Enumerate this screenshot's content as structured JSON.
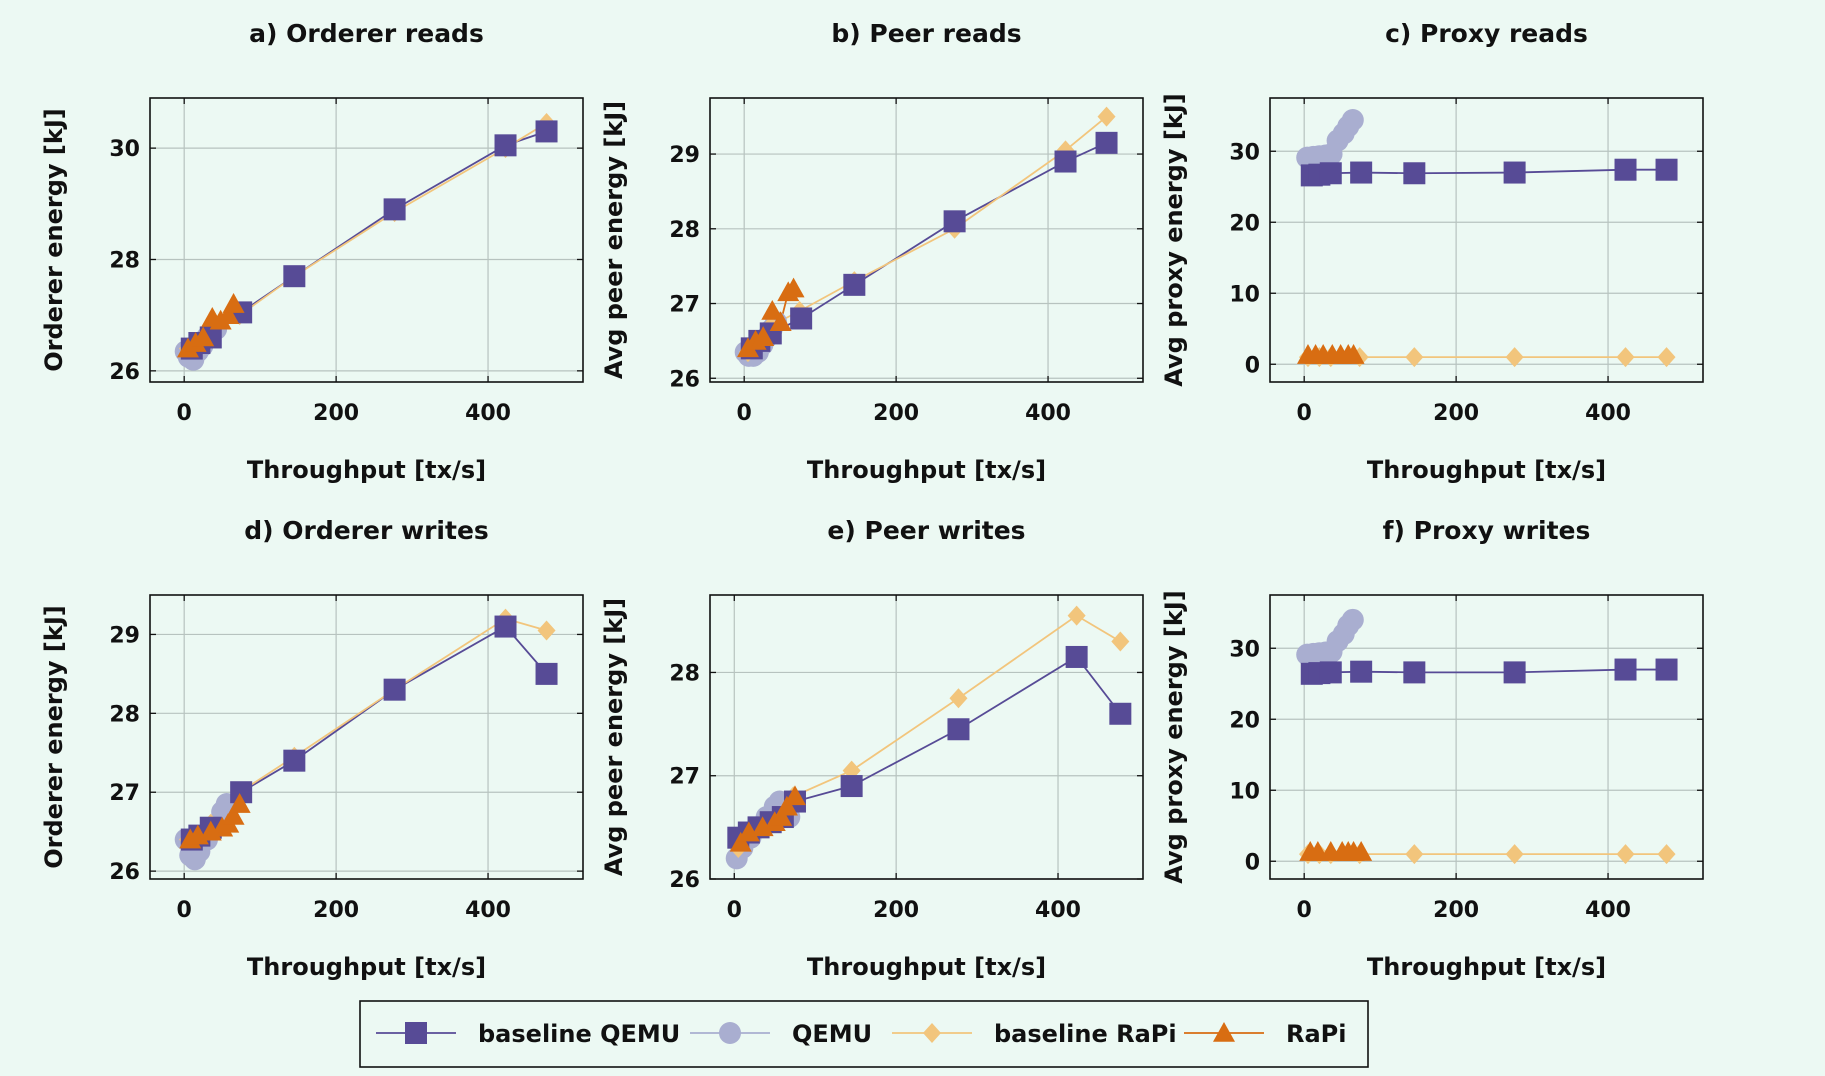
{
  "colors": {
    "baseline QEMU": "#574b96",
    "QEMU": "#a9aed0",
    "baseline RaPi": "#f2c57c",
    "RaPi": "#d86d12"
  },
  "legend": {
    "placement": "bottom-center",
    "entries": [
      {
        "label": "baseline QEMU",
        "marker": "square"
      },
      {
        "label": "QEMU",
        "marker": "circle"
      },
      {
        "label": "baseline RaPi",
        "marker": "diamond"
      },
      {
        "label": "RaPi",
        "marker": "triangle"
      }
    ]
  },
  "chart_data": [
    {
      "type": "line",
      "title": "a) Orderer reads",
      "xlabel": "Throughput [tx/s]",
      "ylabel": "Orderer energy [kJ]",
      "xlim": [
        -45,
        525
      ],
      "ylim": [
        25.8,
        30.9
      ],
      "xticks": [
        0,
        200,
        400
      ],
      "yticks": [
        26,
        28,
        30
      ],
      "grid": true,
      "series": [
        {
          "name": "baseline QEMU",
          "marker": "square",
          "x": [
            10,
            20,
            35,
            75,
            145,
            277,
            423,
            477
          ],
          "y": [
            26.4,
            26.5,
            26.6,
            27.05,
            27.7,
            28.9,
            30.05,
            30.3
          ]
        },
        {
          "name": "QEMU",
          "marker": "circle",
          "x": [
            2,
            6,
            12,
            18,
            24,
            30,
            36,
            42
          ],
          "y": [
            26.35,
            26.25,
            26.2,
            26.35,
            26.45,
            26.6,
            26.7,
            26.75
          ]
        },
        {
          "name": "baseline RaPi",
          "marker": "diamond",
          "x": [
            5,
            20,
            35,
            73,
            145,
            277,
            423,
            477
          ],
          "y": [
            26.4,
            26.5,
            26.7,
            27.0,
            27.7,
            28.85,
            30.0,
            30.45
          ]
        },
        {
          "name": "RaPi",
          "marker": "triangle",
          "x": [
            5,
            15,
            25,
            37,
            48,
            58,
            65
          ],
          "y": [
            26.4,
            26.5,
            26.6,
            26.95,
            26.9,
            27.0,
            27.2
          ]
        }
      ]
    },
    {
      "type": "line",
      "title": "b) Peer reads",
      "xlabel": "Throughput [tx/s]",
      "ylabel": "Avg peer energy [kJ]",
      "xlim": [
        -45,
        525
      ],
      "ylim": [
        25.95,
        29.75
      ],
      "xticks": [
        0,
        200,
        400
      ],
      "yticks": [
        26,
        27,
        28,
        29
      ],
      "grid": true,
      "series": [
        {
          "name": "baseline QEMU",
          "marker": "square",
          "x": [
            10,
            20,
            35,
            75,
            145,
            277,
            423,
            477
          ],
          "y": [
            26.4,
            26.5,
            26.6,
            26.8,
            27.25,
            28.1,
            28.9,
            29.15
          ]
        },
        {
          "name": "QEMU",
          "marker": "circle",
          "x": [
            2,
            6,
            12,
            18,
            24,
            30,
            36,
            42
          ],
          "y": [
            26.35,
            26.3,
            26.3,
            26.35,
            26.45,
            26.55,
            26.65,
            26.75
          ]
        },
        {
          "name": "baseline RaPi",
          "marker": "diamond",
          "x": [
            5,
            20,
            35,
            73,
            145,
            277,
            423,
            477
          ],
          "y": [
            26.35,
            26.5,
            26.7,
            26.9,
            27.3,
            28.0,
            29.05,
            29.5
          ]
        },
        {
          "name": "RaPi",
          "marker": "triangle",
          "x": [
            5,
            15,
            25,
            37,
            48,
            58,
            65
          ],
          "y": [
            26.4,
            26.5,
            26.55,
            26.9,
            26.75,
            27.15,
            27.2
          ]
        }
      ]
    },
    {
      "type": "line",
      "title": "c) Proxy reads",
      "xlabel": "Throughput [tx/s]",
      "ylabel": "Avg proxy energy [kJ]",
      "xlim": [
        -45,
        525
      ],
      "ylim": [
        -2.5,
        37.5
      ],
      "xticks": [
        0,
        200,
        400
      ],
      "yticks": [
        0,
        10,
        20,
        30
      ],
      "grid": true,
      "series": [
        {
          "name": "baseline QEMU",
          "marker": "square",
          "x": [
            10,
            20,
            35,
            75,
            145,
            277,
            423,
            477
          ],
          "y": [
            26.6,
            26.7,
            26.9,
            27.0,
            26.9,
            27.0,
            27.4,
            27.4
          ]
        },
        {
          "name": "QEMU",
          "marker": "circle",
          "x": [
            4,
            12,
            20,
            28,
            36,
            44,
            52,
            58,
            64
          ],
          "y": [
            29.1,
            29.2,
            29.3,
            29.4,
            29.6,
            31.5,
            32.5,
            33.5,
            34.4
          ]
        },
        {
          "name": "baseline RaPi",
          "marker": "diamond",
          "x": [
            5,
            20,
            35,
            73,
            145,
            277,
            423,
            477
          ],
          "y": [
            1.0,
            1.0,
            1.0,
            1.0,
            1.0,
            1.0,
            1.0,
            1.0
          ]
        },
        {
          "name": "RaPi",
          "marker": "triangle",
          "x": [
            5,
            15,
            25,
            37,
            48,
            58,
            65
          ],
          "y": [
            1.3,
            1.3,
            1.3,
            1.3,
            1.3,
            1.3,
            1.3
          ]
        }
      ]
    },
    {
      "type": "line",
      "title": "d) Orderer writes",
      "xlabel": "Throughput [tx/s]",
      "ylabel": "Orderer energy [kJ]",
      "xlim": [
        -45,
        525
      ],
      "ylim": [
        25.9,
        29.5
      ],
      "xticks": [
        0,
        200,
        400
      ],
      "yticks": [
        26,
        27,
        28,
        29
      ],
      "grid": true,
      "series": [
        {
          "name": "baseline QEMU",
          "marker": "square",
          "x": [
            10,
            20,
            35,
            75,
            145,
            277,
            423,
            477
          ],
          "y": [
            26.4,
            26.45,
            26.55,
            27.0,
            27.4,
            28.3,
            29.1,
            28.5
          ]
        },
        {
          "name": "QEMU",
          "marker": "circle",
          "x": [
            2,
            8,
            14,
            20,
            30,
            40,
            50,
            56
          ],
          "y": [
            26.4,
            26.2,
            26.15,
            26.25,
            26.4,
            26.55,
            26.75,
            26.85
          ]
        },
        {
          "name": "baseline RaPi",
          "marker": "diamond",
          "x": [
            5,
            20,
            35,
            73,
            145,
            277,
            423,
            477
          ],
          "y": [
            26.4,
            26.45,
            26.6,
            27.0,
            27.45,
            28.3,
            29.2,
            29.05
          ]
        },
        {
          "name": "RaPi",
          "marker": "triangle",
          "x": [
            8,
            18,
            35,
            50,
            58,
            65,
            73
          ],
          "y": [
            26.4,
            26.45,
            26.5,
            26.55,
            26.6,
            26.7,
            26.85
          ]
        }
      ]
    },
    {
      "type": "line",
      "title": "e) Peer writes",
      "xlabel": "Throughput [tx/s]",
      "ylabel": "Avg peer energy [kJ]",
      "xlim": [
        -30,
        505
      ],
      "ylim": [
        26.0,
        28.75
      ],
      "xticks": [
        0,
        200,
        400
      ],
      "yticks": [
        26,
        27,
        28
      ],
      "grid": true,
      "series": [
        {
          "name": "baseline QEMU",
          "marker": "square",
          "x": [
            5,
            18,
            30,
            45,
            60,
            75,
            145,
            277,
            423,
            477
          ],
          "y": [
            26.4,
            26.45,
            26.5,
            26.55,
            26.6,
            26.75,
            26.9,
            27.45,
            28.15,
            27.6
          ]
        },
        {
          "name": "QEMU",
          "marker": "circle",
          "x": [
            3,
            10,
            20,
            30,
            40,
            50,
            56,
            62,
            68
          ],
          "y": [
            26.2,
            26.3,
            26.4,
            26.5,
            26.6,
            26.7,
            26.75,
            26.65,
            26.6
          ]
        },
        {
          "name": "baseline RaPi",
          "marker": "diamond",
          "x": [
            5,
            20,
            35,
            73,
            145,
            277,
            423,
            477
          ],
          "y": [
            26.3,
            26.45,
            26.55,
            26.8,
            27.05,
            27.75,
            28.55,
            28.3
          ]
        },
        {
          "name": "RaPi",
          "marker": "triangle",
          "x": [
            8,
            18,
            35,
            50,
            58,
            65,
            75
          ],
          "y": [
            26.35,
            26.45,
            26.5,
            26.55,
            26.6,
            26.7,
            26.8
          ]
        }
      ]
    },
    {
      "type": "line",
      "title": "f) Proxy writes",
      "xlabel": "Throughput [tx/s]",
      "ylabel": "Avg proxy energy [kJ]",
      "xlim": [
        -45,
        525
      ],
      "ylim": [
        -2.5,
        37.5
      ],
      "xticks": [
        0,
        200,
        400
      ],
      "yticks": [
        0,
        10,
        20,
        30
      ],
      "grid": true,
      "series": [
        {
          "name": "baseline QEMU",
          "marker": "square",
          "x": [
            10,
            20,
            35,
            75,
            145,
            277,
            423,
            477
          ],
          "y": [
            26.4,
            26.5,
            26.6,
            26.7,
            26.6,
            26.6,
            27.0,
            27.0
          ]
        },
        {
          "name": "QEMU",
          "marker": "circle",
          "x": [
            4,
            12,
            20,
            28,
            36,
            44,
            52,
            58,
            64
          ],
          "y": [
            29.1,
            29.2,
            29.3,
            29.4,
            29.5,
            31.0,
            32.0,
            33.2,
            34.0
          ]
        },
        {
          "name": "baseline RaPi",
          "marker": "diamond",
          "x": [
            5,
            20,
            35,
            73,
            145,
            277,
            423,
            477
          ],
          "y": [
            1.0,
            1.0,
            1.0,
            1.0,
            1.0,
            1.0,
            1.0,
            1.0
          ]
        },
        {
          "name": "RaPi",
          "marker": "triangle",
          "x": [
            8,
            18,
            35,
            50,
            58,
            65,
            75
          ],
          "y": [
            1.3,
            1.3,
            1.3,
            1.3,
            1.3,
            1.3,
            1.3
          ]
        }
      ]
    }
  ]
}
